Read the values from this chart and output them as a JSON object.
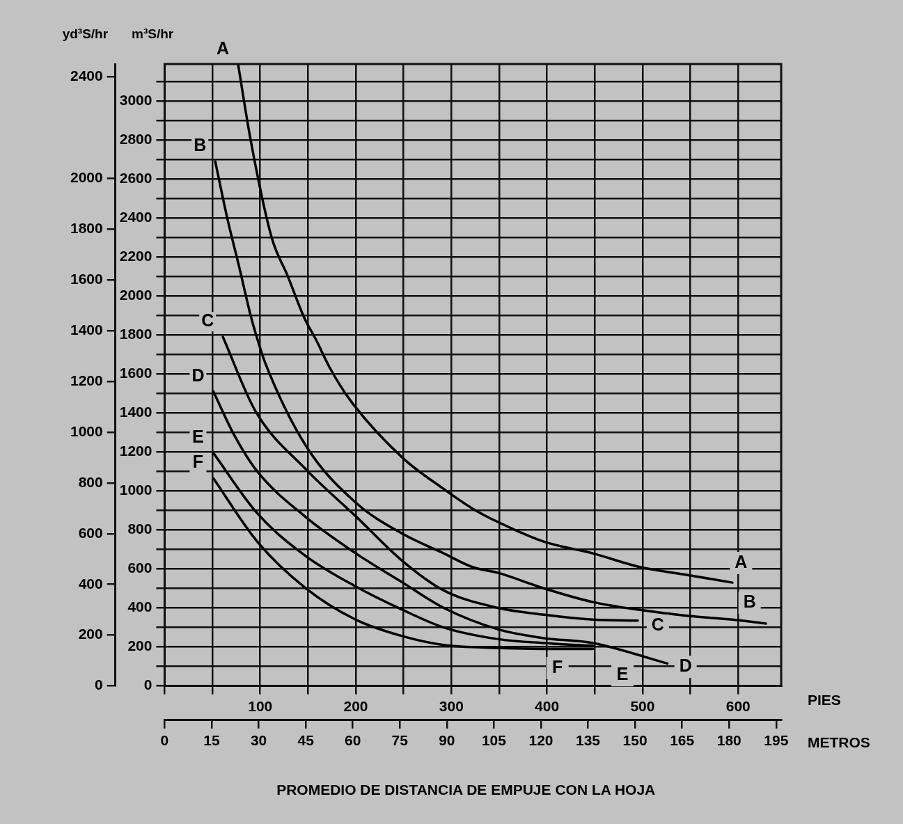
{
  "chart_data": {
    "type": "line",
    "ylabel": "m³S/hr",
    "y2label": "yd³S/hr",
    "xlabel": "PIES",
    "x2label": "METROS",
    "annotations": [
      "PROMEDIO DE DISTANCIA DE EMPUJE CON LA HOJA",
      {
        "text": "A",
        "x": 603,
        "y": 630
      },
      {
        "text": "B",
        "x": 612,
        "y": 426
      },
      {
        "text": "C",
        "x": 516,
        "y": 309
      },
      {
        "text": "D",
        "x": 545,
        "y": 98
      },
      {
        "text": "E",
        "x": 479,
        "y": 55
      },
      {
        "text": "F",
        "x": 411,
        "y": 91
      }
    ],
    "xlim": [
      0,
      645
    ],
    "xticks": [
      {
        "value": 0,
        "label": null
      },
      {
        "value": 50,
        "label": null
      },
      100,
      {
        "value": 150,
        "label": null
      },
      200,
      {
        "value": 250,
        "label": null
      },
      300,
      {
        "value": 350,
        "label": null
      },
      400,
      {
        "value": 450,
        "label": null
      },
      500,
      {
        "value": 550,
        "label": null
      },
      600
    ],
    "x2lim": [
      0,
      196.6
    ],
    "x2ticks": [
      0,
      15,
      30,
      45,
      60,
      75,
      90,
      105,
      120,
      135,
      150,
      165,
      180,
      195
    ],
    "ylim": [
      0,
      3190
    ],
    "yticks": [
      0,
      {
        "value": 100,
        "label": null
      },
      200,
      {
        "value": 300,
        "label": null
      },
      400,
      {
        "value": 500,
        "label": null
      },
      600,
      {
        "value": 700,
        "label": null
      },
      800,
      {
        "value": 900,
        "label": null
      },
      1000,
      {
        "value": 1100,
        "label": null
      },
      1200,
      {
        "value": 1300,
        "label": null
      },
      1400,
      {
        "value": 1500,
        "label": null
      },
      1600,
      {
        "value": 1700,
        "label": null
      },
      1800,
      {
        "value": 1900,
        "label": null
      },
      2000,
      {
        "value": 2100,
        "label": null
      },
      2200,
      {
        "value": 2300,
        "label": null
      },
      2400,
      {
        "value": 2500,
        "label": null
      },
      2600,
      {
        "value": 2700,
        "label": null
      },
      2800,
      {
        "value": 2900,
        "label": null
      },
      3000,
      {
        "value": 3100,
        "label": null
      }
    ],
    "y2lim": [
      0,
      2450
    ],
    "y2ticks": [
      0,
      200,
      400,
      600,
      800,
      1000,
      1200,
      1400,
      1600,
      1800,
      2000,
      2400
    ],
    "grid": true,
    "series": [
      {
        "name": "A",
        "color": "#000000",
        "x": [
          77,
          90,
          112,
          129,
          146,
          159,
          173,
          195,
          249,
          292,
          322,
          349,
          397,
          448,
          497,
          546,
          594
        ],
        "values": [
          3185,
          2800,
          2300,
          2100,
          1890,
          1770,
          1630,
          1460,
          1170,
          1010,
          910,
          840,
          740,
          680,
          610,
          570,
          530
        ]
      },
      {
        "name": "B",
        "color": "#000000",
        "x": [
          53,
          66,
          78,
          90,
          97,
          105,
          148,
          200,
          249,
          292,
          322,
          349,
          397,
          448,
          497,
          546,
          594,
          629
        ],
        "values": [
          2690,
          2390,
          2150,
          1900,
          1780,
          1660,
          1230,
          940,
          780,
          680,
          610,
          580,
          500,
          430,
          390,
          360,
          340,
          320
        ]
      },
      {
        "name": "C",
        "color": "#000000",
        "x": [
          61,
          95,
          148,
          200,
          249,
          292,
          349,
          397,
          448,
          495
        ],
        "values": [
          1790,
          1410,
          1110,
          870,
          640,
          490,
          400,
          365,
          340,
          335
        ]
      },
      {
        "name": "D",
        "color": "#000000",
        "x": [
          51,
          73,
          97,
          148,
          200,
          249,
          292,
          349,
          397,
          448,
          526
        ],
        "values": [
          1510,
          1285,
          1100,
          865,
          680,
          530,
          400,
          290,
          245,
          220,
          115
        ]
      },
      {
        "name": "E",
        "color": "#000000",
        "x": [
          51,
          97,
          148,
          200,
          249,
          292,
          349,
          397,
          448
        ],
        "values": [
          1195,
          885,
          665,
          510,
          390,
          300,
          240,
          220,
          205
        ]
      },
      {
        "name": "F",
        "color": "#000000",
        "x": [
          51,
          97,
          148,
          200,
          249,
          292,
          349,
          397,
          448
        ],
        "values": [
          1065,
          740,
          500,
          340,
          255,
          210,
          195,
          190,
          190
        ]
      }
    ]
  }
}
